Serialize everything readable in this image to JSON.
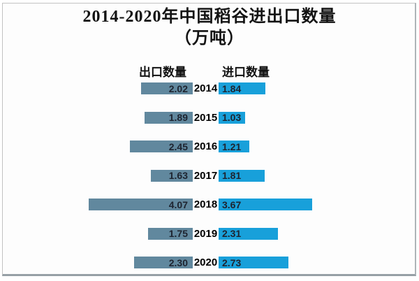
{
  "page": {
    "background": "#fdfdfd",
    "frame_border_color": "#c2c2c2"
  },
  "title": "2014-2020年中国稻谷进出口数量",
  "subtitle": "（万吨）",
  "chart_data": {
    "type": "bar",
    "orientation": "horizontal-tornado",
    "title": "2014-2020年中国稻谷进出口数量",
    "subtitle": "（万吨）",
    "unit": "万吨",
    "categories": [
      "2014",
      "2015",
      "2016",
      "2017",
      "2018",
      "2019",
      "2020"
    ],
    "series": [
      {
        "name": "出口数量",
        "side": "left",
        "color": "#61889E",
        "values": [
          2.02,
          1.89,
          2.45,
          1.63,
          4.07,
          1.75,
          2.3
        ],
        "labels": [
          "2.02",
          "1.89",
          "2.45",
          "1.63",
          "4.07",
          "1.75",
          "2.30"
        ]
      },
      {
        "name": "进口数量",
        "side": "right",
        "color": "#18A0DA",
        "values": [
          1.84,
          1.03,
          1.21,
          1.81,
          3.67,
          2.31,
          2.73
        ],
        "labels": [
          "1.84",
          "1.03",
          "1.21",
          "1.81",
          "3.67",
          "2.31",
          "2.73"
        ]
      }
    ],
    "xlim": [
      0,
      4.5
    ],
    "legend_position": "top-inside",
    "value_labels": "inside-ends",
    "grid": false
  }
}
